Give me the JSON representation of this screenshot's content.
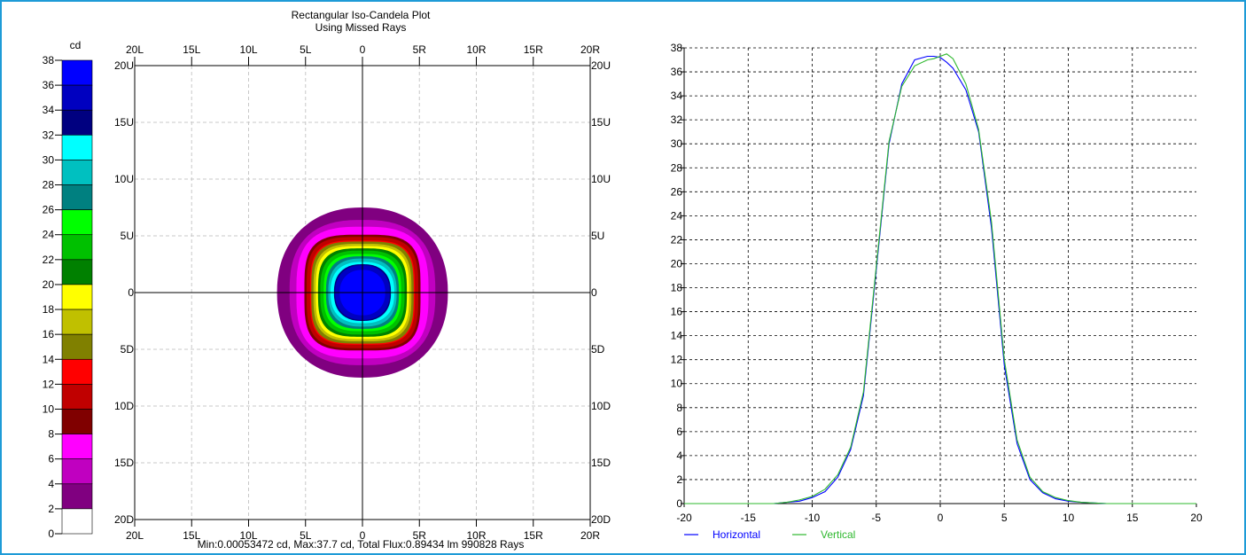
{
  "window_border_color": "#1e9bd7",
  "left_plot": {
    "title_line1": "Rectangular Iso-Candela Plot",
    "title_line2": "Using Missed Rays",
    "footer": "Min:0.00053472 cd, Max:37.7 cd, Total Flux:0.89434 lm 990828 Rays",
    "legend_unit": "cd",
    "x_ticks": [
      "20L",
      "15L",
      "10L",
      "5L",
      "0",
      "5R",
      "10R",
      "15R",
      "20R"
    ],
    "y_ticks": [
      "20U",
      "15U",
      "10U",
      "5U",
      "0",
      "5D",
      "10D",
      "15D",
      "20D"
    ]
  },
  "chart_data": [
    {
      "type": "heatmap",
      "title": "Rectangular Iso-Candela Plot",
      "subtitle": "Using Missed Rays",
      "unit": "cd",
      "xlim": [
        -20,
        20
      ],
      "ylim": [
        -20,
        20
      ],
      "scale": {
        "ticks": [
          "38",
          "36",
          "34",
          "32",
          "30",
          "28",
          "26",
          "24",
          "22",
          "20",
          "18",
          "16",
          "14",
          "12",
          "10",
          "8",
          "6",
          "4",
          "2",
          "0"
        ],
        "bands": [
          {
            "lo": 36,
            "hi": 38,
            "color": "#0000ff"
          },
          {
            "lo": 34,
            "hi": 36,
            "color": "#0000c0"
          },
          {
            "lo": 32,
            "hi": 34,
            "color": "#000080"
          },
          {
            "lo": 30,
            "hi": 32,
            "color": "#00ffff"
          },
          {
            "lo": 28,
            "hi": 30,
            "color": "#00c0c0"
          },
          {
            "lo": 26,
            "hi": 28,
            "color": "#008080"
          },
          {
            "lo": 24,
            "hi": 26,
            "color": "#00ff00"
          },
          {
            "lo": 22,
            "hi": 24,
            "color": "#00c000"
          },
          {
            "lo": 20,
            "hi": 22,
            "color": "#008000"
          },
          {
            "lo": 18,
            "hi": 20,
            "color": "#ffff00"
          },
          {
            "lo": 16,
            "hi": 18,
            "color": "#c0c000"
          },
          {
            "lo": 14,
            "hi": 16,
            "color": "#808000"
          },
          {
            "lo": 12,
            "hi": 14,
            "color": "#ff0000"
          },
          {
            "lo": 10,
            "hi": 12,
            "color": "#c00000"
          },
          {
            "lo": 8,
            "hi": 10,
            "color": "#800000"
          },
          {
            "lo": 6,
            "hi": 8,
            "color": "#ff00ff"
          },
          {
            "lo": 4,
            "hi": 6,
            "color": "#c000c0"
          },
          {
            "lo": 2,
            "hi": 4,
            "color": "#800080"
          },
          {
            "lo": 0,
            "hi": 2,
            "color": "#ffffff"
          }
        ]
      },
      "contours": [
        {
          "level": 2,
          "rx": 7.5,
          "ry": 7.5,
          "squareness": 2.2
        },
        {
          "level": 4,
          "rx": 6.4,
          "ry": 6.4,
          "squareness": 2.6
        },
        {
          "level": 6,
          "rx": 5.8,
          "ry": 5.8,
          "squareness": 3.0
        },
        {
          "level": 8,
          "rx": 5.1,
          "ry": 5.1,
          "squareness": 3.6
        },
        {
          "level": 10,
          "rx": 4.9,
          "ry": 4.9,
          "squareness": 3.6
        },
        {
          "level": 12,
          "rx": 4.6,
          "ry": 4.6,
          "squareness": 3.6
        },
        {
          "level": 14,
          "rx": 4.5,
          "ry": 4.5,
          "squareness": 3.6
        },
        {
          "level": 16,
          "rx": 4.3,
          "ry": 4.3,
          "squareness": 3.4
        },
        {
          "level": 18,
          "rx": 4.1,
          "ry": 4.1,
          "squareness": 3.4
        },
        {
          "level": 20,
          "rx": 3.9,
          "ry": 3.9,
          "squareness": 3.2
        },
        {
          "level": 22,
          "rx": 3.7,
          "ry": 3.7,
          "squareness": 3.0
        },
        {
          "level": 24,
          "rx": 3.4,
          "ry": 3.4,
          "squareness": 3.0
        },
        {
          "level": 26,
          "rx": 3.2,
          "ry": 3.2,
          "squareness": 2.8
        },
        {
          "level": 28,
          "rx": 3.0,
          "ry": 3.0,
          "squareness": 2.6
        },
        {
          "level": 30,
          "rx": 2.8,
          "ry": 2.7,
          "squareness": 2.5
        },
        {
          "level": 32,
          "rx": 2.5,
          "ry": 2.5,
          "squareness": 2.4
        },
        {
          "level": 34,
          "rx": 2.4,
          "ry": 2.4,
          "squareness": 2.3
        },
        {
          "level": 36,
          "rx": 2.0,
          "ry": 2.0,
          "squareness": 2.2
        }
      ]
    },
    {
      "type": "line",
      "xlim": [
        -20,
        20
      ],
      "ylim": [
        0,
        38
      ],
      "x_ticks": [
        "-20",
        "-15",
        "-10",
        "-5",
        "0",
        "5",
        "10",
        "15",
        "20"
      ],
      "y_ticks": [
        "0",
        "2",
        "4",
        "6",
        "8",
        "10",
        "12",
        "14",
        "16",
        "18",
        "20",
        "22",
        "24",
        "26",
        "28",
        "30",
        "32",
        "34",
        "36",
        "38"
      ],
      "grid": true,
      "legend_position": "bottom-left",
      "series": [
        {
          "name": "Horizontal",
          "color": "#0000ff",
          "x": [
            -20,
            -13,
            -12,
            -11,
            -10,
            -9,
            -8,
            -7,
            -6,
            -5,
            -4,
            -3,
            -2,
            -1,
            -0.5,
            0,
            0.5,
            1,
            2,
            3,
            4,
            5,
            6,
            7,
            8,
            9,
            10,
            11,
            12,
            13,
            20
          ],
          "y": [
            0,
            0,
            0.1,
            0.2,
            0.5,
            1.0,
            2.2,
            4.5,
            9.0,
            19.5,
            30.0,
            35.0,
            37.0,
            37.3,
            37.3,
            37.2,
            36.8,
            36.3,
            34.5,
            31.0,
            23.0,
            11.5,
            5.0,
            2.0,
            0.9,
            0.4,
            0.2,
            0.1,
            0.05,
            0,
            0
          ]
        },
        {
          "name": "Vertical",
          "color": "#2eb82e",
          "x": [
            -20,
            -13,
            -12,
            -11,
            -10,
            -9,
            -8,
            -7,
            -6,
            -5,
            -4,
            -3,
            -2,
            -1,
            -0.5,
            0,
            0.5,
            1,
            2,
            3,
            4,
            5,
            6,
            7,
            8,
            9,
            10,
            11,
            12,
            13,
            20
          ],
          "y": [
            0,
            0,
            0.1,
            0.3,
            0.6,
            1.2,
            2.4,
            4.7,
            9.3,
            19.8,
            30.2,
            34.8,
            36.5,
            37.0,
            37.1,
            37.3,
            37.5,
            37.1,
            35.0,
            31.2,
            23.5,
            12.0,
            5.3,
            2.2,
            1.0,
            0.5,
            0.25,
            0.1,
            0.05,
            0,
            0
          ]
        }
      ]
    }
  ]
}
